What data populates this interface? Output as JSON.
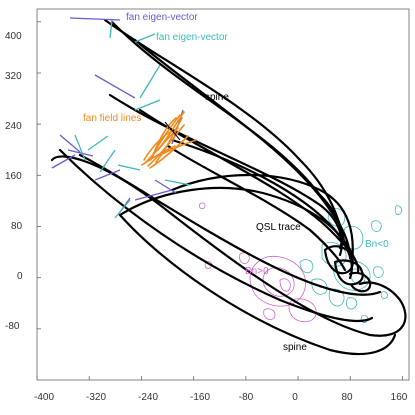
{
  "chart_data": {
    "type": "diagram",
    "axes": {
      "xlim": [
        -400,
        170
      ],
      "ylim": [
        -160,
        420
      ],
      "x_ticks": [
        "-400",
        "-320",
        "-240",
        "-160",
        "-80",
        "0",
        "80",
        "160"
      ],
      "y_ticks": [
        "400",
        "320",
        "240",
        "160",
        "80",
        "0",
        "-80"
      ]
    },
    "annotations": {
      "fan_eigen_vector_1": "fan eigen-vector",
      "fan_eigen_vector_2": "fan eigen-vector",
      "spine_top": "spine",
      "fan_field_lines": "fan field lines",
      "qsl_trace": "QSL trace",
      "bn_neg": "Bn<0",
      "bn_pos": "Bn>0",
      "spine_bottom": "spine"
    },
    "colors": {
      "field_line": "#000000",
      "fan_eigen_vector_1": "#6a5acd",
      "fan_eigen_vector_2": "#3fb8b8",
      "fan_field_lines": "#f08a1c",
      "bn_negative_contour": "#3fb8b8",
      "bn_positive_contour": "#cc66cc",
      "axis": "#555555"
    }
  }
}
